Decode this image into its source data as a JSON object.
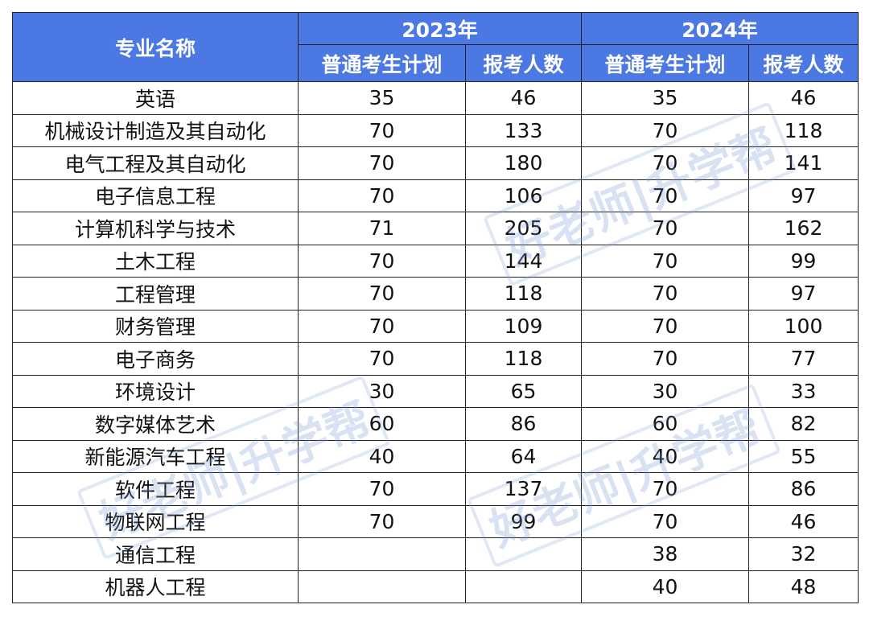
{
  "table": {
    "header": {
      "name": "专业名称",
      "year1": "2023年",
      "year2": "2024年",
      "plan": "普通考生计划",
      "applicants": "报考人数"
    },
    "rows": [
      {
        "name": "英语",
        "plan2023": "35",
        "app2023": "46",
        "plan2024": "35",
        "app2024": "46"
      },
      {
        "name": "机械设计制造及其自动化",
        "plan2023": "70",
        "app2023": "133",
        "plan2024": "70",
        "app2024": "118"
      },
      {
        "name": "电气工程及其自动化",
        "plan2023": "70",
        "app2023": "180",
        "plan2024": "70",
        "app2024": "141"
      },
      {
        "name": "电子信息工程",
        "plan2023": "70",
        "app2023": "106",
        "plan2024": "70",
        "app2024": "97"
      },
      {
        "name": "计算机科学与技术",
        "plan2023": "71",
        "app2023": "205",
        "plan2024": "70",
        "app2024": "162"
      },
      {
        "name": "土木工程",
        "plan2023": "70",
        "app2023": "144",
        "plan2024": "70",
        "app2024": "99"
      },
      {
        "name": "工程管理",
        "plan2023": "70",
        "app2023": "118",
        "plan2024": "70",
        "app2024": "97"
      },
      {
        "name": "财务管理",
        "plan2023": "70",
        "app2023": "109",
        "plan2024": "70",
        "app2024": "100"
      },
      {
        "name": "电子商务",
        "plan2023": "70",
        "app2023": "118",
        "plan2024": "70",
        "app2024": "77"
      },
      {
        "name": "环境设计",
        "plan2023": "30",
        "app2023": "65",
        "plan2024": "30",
        "app2024": "33"
      },
      {
        "name": "数字媒体艺术",
        "plan2023": "60",
        "app2023": "86",
        "plan2024": "60",
        "app2024": "82"
      },
      {
        "name": "新能源汽车工程",
        "plan2023": "40",
        "app2023": "64",
        "plan2024": "40",
        "app2024": "55"
      },
      {
        "name": "软件工程",
        "plan2023": "70",
        "app2023": "137",
        "plan2024": "70",
        "app2024": "86"
      },
      {
        "name": "物联网工程",
        "plan2023": "70",
        "app2023": "99",
        "plan2024": "70",
        "app2024": "46"
      },
      {
        "name": "通信工程",
        "plan2023": "",
        "app2023": "",
        "plan2024": "38",
        "app2024": "32"
      },
      {
        "name": "机器人工程",
        "plan2023": "",
        "app2023": "",
        "plan2024": "40",
        "app2024": "48"
      }
    ]
  },
  "watermark": {
    "text": "好老师|升学帮"
  },
  "colors": {
    "header_bg": "#4b78e2",
    "header_text": "#ffffff",
    "border": "#1f1f1f"
  }
}
